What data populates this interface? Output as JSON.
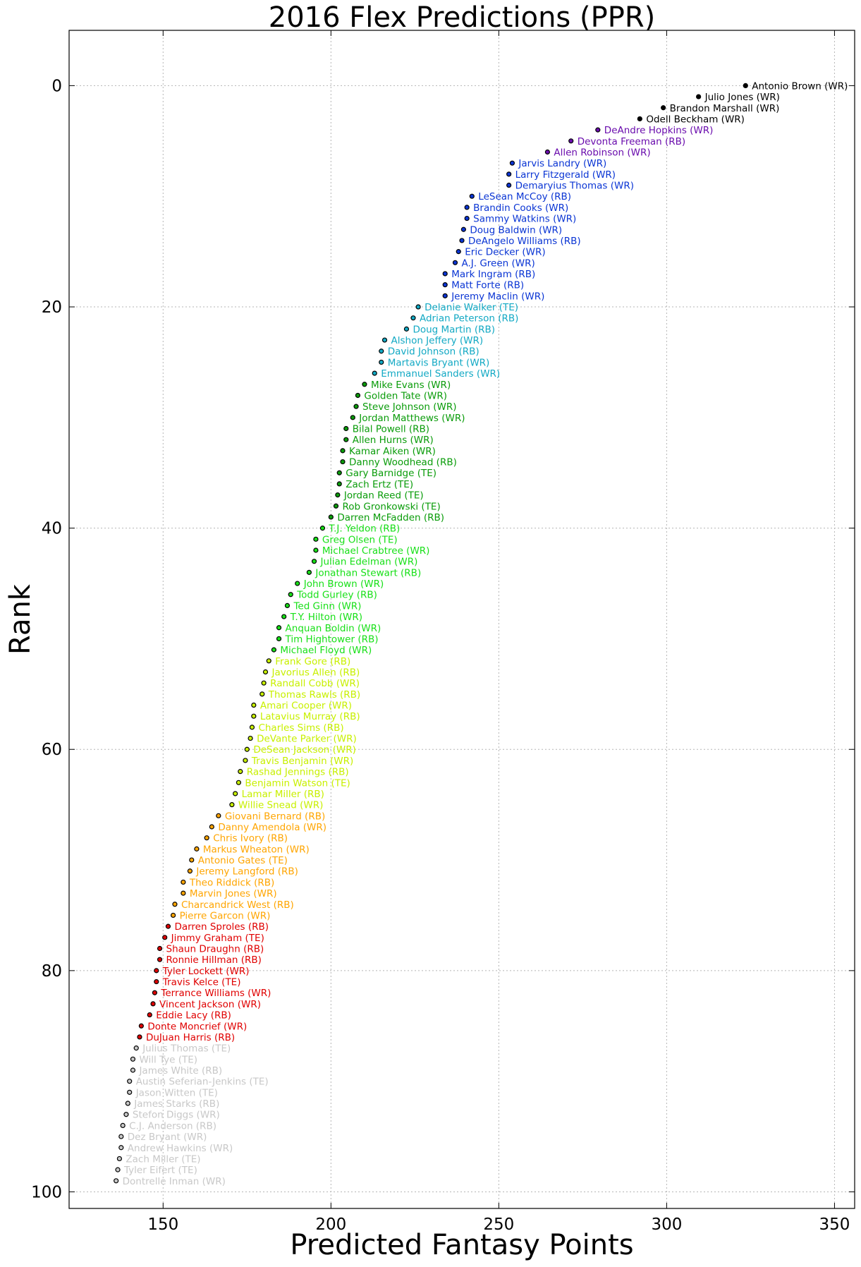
{
  "chart_data": {
    "type": "scatter",
    "title": "2016 Flex Predictions (PPR)",
    "xlabel": "Predicted Fantasy Points",
    "ylabel": "Rank",
    "xlim": [
      122,
      356
    ],
    "ylim": [
      -5,
      101.5
    ],
    "y_inverted": true,
    "grid": true,
    "xticks": [
      150,
      200,
      250,
      300,
      350
    ],
    "yticks": [
      0,
      20,
      40,
      60,
      80,
      100
    ],
    "tier_colors": [
      "#000000",
      "#6a0dad",
      "#0a35d4",
      "#12a9c4",
      "#0a9c0a",
      "#18e018",
      "#c8f000",
      "#ffa500",
      "#e00000",
      "#c8c8c8"
    ],
    "points": [
      {
        "name": "Antonio Brown (WR)",
        "points": 323.5,
        "rank": 0,
        "tier": 0
      },
      {
        "name": "Julio Jones (WR)",
        "points": 309.5,
        "rank": 1,
        "tier": 0
      },
      {
        "name": "Brandon Marshall (WR)",
        "points": 299,
        "rank": 2,
        "tier": 0
      },
      {
        "name": "Odell Beckham (WR)",
        "points": 292,
        "rank": 3,
        "tier": 0
      },
      {
        "name": "DeAndre Hopkins (WR)",
        "points": 279.5,
        "rank": 4,
        "tier": 1
      },
      {
        "name": "Devonta Freeman (RB)",
        "points": 271.5,
        "rank": 5,
        "tier": 1
      },
      {
        "name": "Allen Robinson (WR)",
        "points": 264.5,
        "rank": 6,
        "tier": 1
      },
      {
        "name": "Jarvis Landry (WR)",
        "points": 254,
        "rank": 7,
        "tier": 2
      },
      {
        "name": "Larry Fitzgerald (WR)",
        "points": 253,
        "rank": 8,
        "tier": 2
      },
      {
        "name": "Demaryius Thomas (WR)",
        "points": 253,
        "rank": 9,
        "tier": 2
      },
      {
        "name": "LeSean McCoy (RB)",
        "points": 242,
        "rank": 10,
        "tier": 2
      },
      {
        "name": "Brandin Cooks (WR)",
        "points": 240.5,
        "rank": 11,
        "tier": 2
      },
      {
        "name": "Sammy Watkins (WR)",
        "points": 240.5,
        "rank": 12,
        "tier": 2
      },
      {
        "name": "Doug Baldwin (WR)",
        "points": 239.5,
        "rank": 13,
        "tier": 2
      },
      {
        "name": "DeAngelo Williams (RB)",
        "points": 239,
        "rank": 14,
        "tier": 2
      },
      {
        "name": "Eric Decker (WR)",
        "points": 238,
        "rank": 15,
        "tier": 2
      },
      {
        "name": "A.J. Green (WR)",
        "points": 237,
        "rank": 16,
        "tier": 2
      },
      {
        "name": "Mark Ingram (RB)",
        "points": 234,
        "rank": 17,
        "tier": 2
      },
      {
        "name": "Matt Forte (RB)",
        "points": 234,
        "rank": 18,
        "tier": 2
      },
      {
        "name": "Jeremy Maclin (WR)",
        "points": 234,
        "rank": 19,
        "tier": 2
      },
      {
        "name": "Delanie Walker (TE)",
        "points": 226,
        "rank": 20,
        "tier": 3
      },
      {
        "name": "Adrian Peterson (RB)",
        "points": 224.5,
        "rank": 21,
        "tier": 3
      },
      {
        "name": "Doug Martin (RB)",
        "points": 222.5,
        "rank": 22,
        "tier": 3
      },
      {
        "name": "Alshon Jeffery (WR)",
        "points": 216,
        "rank": 23,
        "tier": 3
      },
      {
        "name": "David Johnson (RB)",
        "points": 215,
        "rank": 24,
        "tier": 3
      },
      {
        "name": "Martavis Bryant (WR)",
        "points": 215,
        "rank": 25,
        "tier": 3
      },
      {
        "name": "Emmanuel Sanders (WR)",
        "points": 213,
        "rank": 26,
        "tier": 3
      },
      {
        "name": "Mike Evans (WR)",
        "points": 210,
        "rank": 27,
        "tier": 4
      },
      {
        "name": "Golden Tate (WR)",
        "points": 208,
        "rank": 28,
        "tier": 4
      },
      {
        "name": "Steve Johnson (WR)",
        "points": 207.5,
        "rank": 29,
        "tier": 4
      },
      {
        "name": "Jordan Matthews (WR)",
        "points": 206.5,
        "rank": 30,
        "tier": 4
      },
      {
        "name": "Bilal Powell (RB)",
        "points": 204.5,
        "rank": 31,
        "tier": 4
      },
      {
        "name": "Allen Hurns (WR)",
        "points": 204.5,
        "rank": 32,
        "tier": 4
      },
      {
        "name": "Kamar Aiken (WR)",
        "points": 203.5,
        "rank": 33,
        "tier": 4
      },
      {
        "name": "Danny Woodhead (RB)",
        "points": 203.5,
        "rank": 34,
        "tier": 4
      },
      {
        "name": "Gary Barnidge (TE)",
        "points": 202.5,
        "rank": 35,
        "tier": 4
      },
      {
        "name": "Zach Ertz (TE)",
        "points": 202.5,
        "rank": 36,
        "tier": 4
      },
      {
        "name": "Jordan Reed (TE)",
        "points": 202,
        "rank": 37,
        "tier": 4
      },
      {
        "name": "Rob Gronkowski (TE)",
        "points": 201.5,
        "rank": 38,
        "tier": 4
      },
      {
        "name": "Darren McFadden (RB)",
        "points": 200,
        "rank": 39,
        "tier": 4
      },
      {
        "name": "T.J. Yeldon (RB)",
        "points": 197.5,
        "rank": 40,
        "tier": 5
      },
      {
        "name": "Greg Olsen (TE)",
        "points": 195.5,
        "rank": 41,
        "tier": 5
      },
      {
        "name": "Michael Crabtree (WR)",
        "points": 195.5,
        "rank": 42,
        "tier": 5
      },
      {
        "name": "Julian Edelman (WR)",
        "points": 195,
        "rank": 43,
        "tier": 5
      },
      {
        "name": "Jonathan Stewart (RB)",
        "points": 193.5,
        "rank": 44,
        "tier": 5
      },
      {
        "name": "John Brown (WR)",
        "points": 190,
        "rank": 45,
        "tier": 5
      },
      {
        "name": "Todd Gurley (RB)",
        "points": 188,
        "rank": 46,
        "tier": 5
      },
      {
        "name": "Ted Ginn (WR)",
        "points": 187,
        "rank": 47,
        "tier": 5
      },
      {
        "name": "T.Y. Hilton (WR)",
        "points": 186,
        "rank": 48,
        "tier": 5
      },
      {
        "name": "Anquan Boldin (WR)",
        "points": 184.5,
        "rank": 49,
        "tier": 5
      },
      {
        "name": "Tim Hightower (RB)",
        "points": 184.5,
        "rank": 50,
        "tier": 5
      },
      {
        "name": "Michael Floyd (WR)",
        "points": 183,
        "rank": 51,
        "tier": 5
      },
      {
        "name": "Frank Gore (RB)",
        "points": 181.5,
        "rank": 52,
        "tier": 6
      },
      {
        "name": "Javorius Allen (RB)",
        "points": 180.5,
        "rank": 53,
        "tier": 6
      },
      {
        "name": "Randall Cobb (WR)",
        "points": 180,
        "rank": 54,
        "tier": 6
      },
      {
        "name": "Thomas Rawls (RB)",
        "points": 179.5,
        "rank": 55,
        "tier": 6
      },
      {
        "name": "Amari Cooper (WR)",
        "points": 177,
        "rank": 56,
        "tier": 6
      },
      {
        "name": "Latavius Murray (RB)",
        "points": 177,
        "rank": 57,
        "tier": 6
      },
      {
        "name": "Charles Sims (RB)",
        "points": 176.5,
        "rank": 58,
        "tier": 6
      },
      {
        "name": "DeVante Parker (WR)",
        "points": 176,
        "rank": 59,
        "tier": 6
      },
      {
        "name": "DeSean Jackson (WR)",
        "points": 175,
        "rank": 60,
        "tier": 6
      },
      {
        "name": "Travis Benjamin (WR)",
        "points": 174.5,
        "rank": 61,
        "tier": 6
      },
      {
        "name": "Rashad Jennings (RB)",
        "points": 173,
        "rank": 62,
        "tier": 6
      },
      {
        "name": "Benjamin Watson (TE)",
        "points": 172.5,
        "rank": 63,
        "tier": 6
      },
      {
        "name": "Lamar Miller (RB)",
        "points": 171.5,
        "rank": 64,
        "tier": 6
      },
      {
        "name": "Willie Snead (WR)",
        "points": 170.5,
        "rank": 65,
        "tier": 6
      },
      {
        "name": "Giovani Bernard (RB)",
        "points": 166.5,
        "rank": 66,
        "tier": 7
      },
      {
        "name": "Danny Amendola (WR)",
        "points": 164.5,
        "rank": 67,
        "tier": 7
      },
      {
        "name": "Chris Ivory (RB)",
        "points": 163,
        "rank": 68,
        "tier": 7
      },
      {
        "name": "Markus Wheaton (WR)",
        "points": 160,
        "rank": 69,
        "tier": 7
      },
      {
        "name": "Antonio Gates (TE)",
        "points": 158.5,
        "rank": 70,
        "tier": 7
      },
      {
        "name": "Jeremy Langford (RB)",
        "points": 158,
        "rank": 71,
        "tier": 7
      },
      {
        "name": "Theo Riddick (RB)",
        "points": 156,
        "rank": 72,
        "tier": 7
      },
      {
        "name": "Marvin Jones (WR)",
        "points": 156,
        "rank": 73,
        "tier": 7
      },
      {
        "name": "Charcandrick West (RB)",
        "points": 153.5,
        "rank": 74,
        "tier": 7
      },
      {
        "name": "Pierre Garcon (WR)",
        "points": 153,
        "rank": 75,
        "tier": 7
      },
      {
        "name": "Darren Sproles (RB)",
        "points": 151.5,
        "rank": 76,
        "tier": 8
      },
      {
        "name": "Jimmy Graham (TE)",
        "points": 150.5,
        "rank": 77,
        "tier": 8
      },
      {
        "name": "Shaun Draughn (RB)",
        "points": 149,
        "rank": 78,
        "tier": 8
      },
      {
        "name": "Ronnie Hillman (RB)",
        "points": 149,
        "rank": 79,
        "tier": 8
      },
      {
        "name": "Tyler Lockett (WR)",
        "points": 148,
        "rank": 80,
        "tier": 8
      },
      {
        "name": "Travis Kelce (TE)",
        "points": 148,
        "rank": 81,
        "tier": 8
      },
      {
        "name": "Terrance Williams (WR)",
        "points": 147.5,
        "rank": 82,
        "tier": 8
      },
      {
        "name": "Vincent Jackson (WR)",
        "points": 147,
        "rank": 83,
        "tier": 8
      },
      {
        "name": "Eddie Lacy (RB)",
        "points": 146,
        "rank": 84,
        "tier": 8
      },
      {
        "name": "Donte Moncrief (WR)",
        "points": 143.5,
        "rank": 85,
        "tier": 8
      },
      {
        "name": "DuJuan Harris (RB)",
        "points": 143,
        "rank": 86,
        "tier": 8
      },
      {
        "name": "Julius Thomas (TE)",
        "points": 142,
        "rank": 87,
        "tier": 9
      },
      {
        "name": "Will Tye (TE)",
        "points": 141,
        "rank": 88,
        "tier": 9
      },
      {
        "name": "James White (RB)",
        "points": 141,
        "rank": 89,
        "tier": 9
      },
      {
        "name": "Austin Seferian-Jenkins (TE)",
        "points": 140,
        "rank": 90,
        "tier": 9
      },
      {
        "name": "Jason Witten (TE)",
        "points": 140,
        "rank": 91,
        "tier": 9
      },
      {
        "name": "James Starks (RB)",
        "points": 139.5,
        "rank": 92,
        "tier": 9
      },
      {
        "name": "Stefon Diggs (WR)",
        "points": 139,
        "rank": 93,
        "tier": 9
      },
      {
        "name": "C.J. Anderson (RB)",
        "points": 138,
        "rank": 94,
        "tier": 9
      },
      {
        "name": "Dez Bryant (WR)",
        "points": 137.5,
        "rank": 95,
        "tier": 9
      },
      {
        "name": "Andrew Hawkins (WR)",
        "points": 137.5,
        "rank": 96,
        "tier": 9
      },
      {
        "name": "Zach Miller (TE)",
        "points": 137,
        "rank": 97,
        "tier": 9
      },
      {
        "name": "Tyler Eifert (TE)",
        "points": 136.5,
        "rank": 98,
        "tier": 9
      },
      {
        "name": "Dontrelle Inman (WR)",
        "points": 136,
        "rank": 99,
        "tier": 9
      }
    ]
  }
}
